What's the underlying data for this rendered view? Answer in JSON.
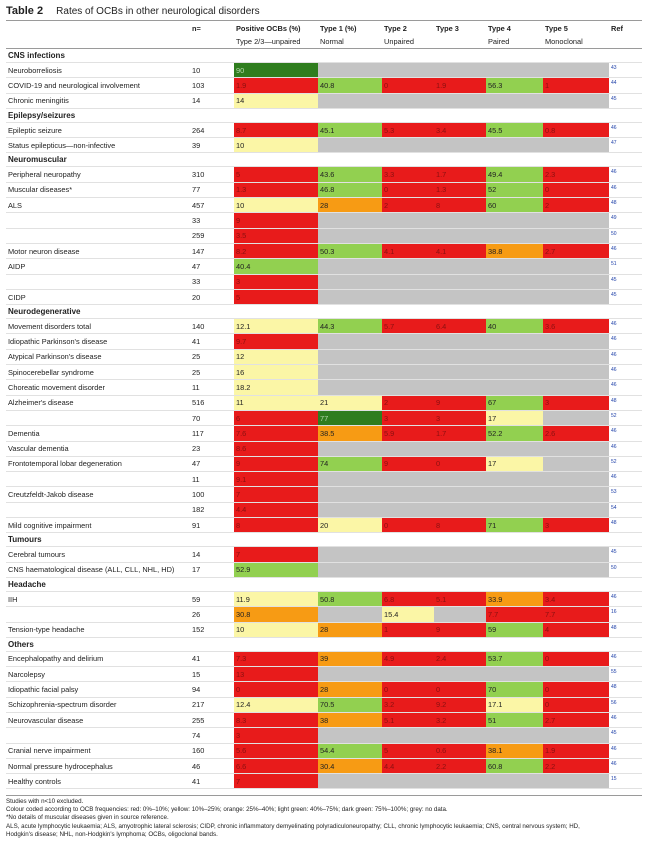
{
  "title": {
    "label": "Table 2",
    "text": "Rates of OCBs in other neurological disorders"
  },
  "colors": {
    "red": "#e81b1b",
    "yellow": "#fbf6a6",
    "orange": "#f79b14",
    "light_green": "#92d050",
    "dark_green": "#2f7d1e",
    "grey": "#c4c4c4"
  },
  "headers": {
    "row1": [
      "",
      "n=",
      "Positive OCBs (%)",
      "Type 1 (%)",
      "Type 2",
      "Type 3",
      "Type 4",
      "Type 5",
      "Ref"
    ],
    "row2": [
      "",
      "",
      "Type 2/3—unpaired",
      "Normal",
      "Unpaired",
      "",
      "Paired",
      "Monoclonal",
      ""
    ]
  },
  "rows": [
    {
      "kind": "section",
      "label": "CNS infections"
    },
    {
      "label": "Neuroborreliosis",
      "n": "10",
      "v": [
        "90",
        "",
        "",
        "",
        "",
        ""
      ],
      "c": [
        "dg",
        "gry",
        "gry",
        "gry",
        "gry",
        "gry"
      ],
      "ref": "43"
    },
    {
      "label": "COVID-19 and neurological involvement",
      "n": "103",
      "v": [
        "1.9",
        "40.8",
        "0",
        "1.9",
        "56.3",
        "1"
      ],
      "c": [
        "red",
        "lg",
        "red",
        "red",
        "lg",
        "red"
      ],
      "ref": "44"
    },
    {
      "label": "Chronic meningitis",
      "n": "14",
      "v": [
        "14",
        "",
        "",
        "",
        "",
        ""
      ],
      "c": [
        "yel",
        "gry",
        "gry",
        "gry",
        "gry",
        "gry"
      ],
      "ref": "45"
    },
    {
      "kind": "section",
      "label": "Epilepsy/seizures"
    },
    {
      "label": "Epileptic seizure",
      "n": "264",
      "v": [
        "8.7",
        "45.1",
        "5.3",
        "3.4",
        "45.5",
        "0.8"
      ],
      "c": [
        "red",
        "lg",
        "red",
        "red",
        "lg",
        "red"
      ],
      "ref": "46"
    },
    {
      "label": "Status epilepticus—non-infective",
      "n": "39",
      "v": [
        "10",
        "",
        "",
        "",
        "",
        ""
      ],
      "c": [
        "yel",
        "gry",
        "gry",
        "gry",
        "gry",
        "gry"
      ],
      "ref": "47"
    },
    {
      "kind": "section",
      "label": "Neuromuscular"
    },
    {
      "label": "Peripheral neuropathy",
      "n": "310",
      "v": [
        "5",
        "43.6",
        "3.3",
        "1.7",
        "49.4",
        "2.3"
      ],
      "c": [
        "red",
        "lg",
        "red",
        "red",
        "lg",
        "red"
      ],
      "ref": "46"
    },
    {
      "label": "Muscular diseases*",
      "n": "77",
      "v": [
        "1.3",
        "46.8",
        "0",
        "1.3",
        "52",
        "0"
      ],
      "c": [
        "red",
        "lg",
        "red",
        "red",
        "lg",
        "red"
      ],
      "ref": "46"
    },
    {
      "label": "ALS",
      "n": "457",
      "v": [
        "10",
        "28",
        "2",
        "8",
        "60",
        "2"
      ],
      "c": [
        "yel",
        "ora",
        "red",
        "red",
        "lg",
        "red"
      ],
      "ref": "48"
    },
    {
      "label": "",
      "n": "33",
      "v": [
        "9",
        "",
        "",
        "",
        "",
        ""
      ],
      "c": [
        "red",
        "gry",
        "gry",
        "gry",
        "gry",
        "gry"
      ],
      "ref": "49"
    },
    {
      "label": "",
      "n": "259",
      "v": [
        "3.5",
        "",
        "",
        "",
        "",
        ""
      ],
      "c": [
        "red",
        "gry",
        "gry",
        "gry",
        "gry",
        "gry"
      ],
      "ref": "50"
    },
    {
      "label": "Motor neuron disease",
      "n": "147",
      "v": [
        "8.2",
        "50.3",
        "4.1",
        "4.1",
        "38.8",
        "2.7"
      ],
      "c": [
        "red",
        "lg",
        "red",
        "red",
        "ora",
        "red"
      ],
      "ref": "46"
    },
    {
      "label": "AIDP",
      "n": "47",
      "v": [
        "40.4",
        "",
        "",
        "",
        "",
        ""
      ],
      "c": [
        "lg",
        "gry",
        "gry",
        "gry",
        "gry",
        "gry"
      ],
      "ref": "51"
    },
    {
      "label": "",
      "n": "33",
      "v": [
        "3",
        "",
        "",
        "",
        "",
        ""
      ],
      "c": [
        "red",
        "gry",
        "gry",
        "gry",
        "gry",
        "gry"
      ],
      "ref": "45"
    },
    {
      "label": "CIDP",
      "n": "20",
      "v": [
        "5",
        "",
        "",
        "",
        "",
        ""
      ],
      "c": [
        "red",
        "gry",
        "gry",
        "gry",
        "gry",
        "gry"
      ],
      "ref": "45"
    },
    {
      "kind": "section",
      "label": "Neurodegenerative"
    },
    {
      "label": "Movement disorders total",
      "n": "140",
      "v": [
        "12.1",
        "44.3",
        "5.7",
        "6.4",
        "40",
        "3.6"
      ],
      "c": [
        "yel",
        "lg",
        "red",
        "red",
        "lg",
        "red"
      ],
      "ref": "46"
    },
    {
      "label": "Idiopathic Parkinson's disease",
      "n": "41",
      "v": [
        "9.7",
        "",
        "",
        "",
        "",
        ""
      ],
      "c": [
        "red",
        "gry",
        "gry",
        "gry",
        "gry",
        "gry"
      ],
      "ref": "46"
    },
    {
      "label": "Atypical Parkinson's disease",
      "n": "25",
      "v": [
        "12",
        "",
        "",
        "",
        "",
        ""
      ],
      "c": [
        "yel",
        "gry",
        "gry",
        "gry",
        "gry",
        "gry"
      ],
      "ref": "46"
    },
    {
      "label": "Spinocerebellar syndrome",
      "n": "25",
      "v": [
        "16",
        "",
        "",
        "",
        "",
        ""
      ],
      "c": [
        "yel",
        "gry",
        "gry",
        "gry",
        "gry",
        "gry"
      ],
      "ref": "46"
    },
    {
      "label": "Choreatic movement disorder",
      "n": "11",
      "v": [
        "18.2",
        "",
        "",
        "",
        "",
        ""
      ],
      "c": [
        "yel",
        "gry",
        "gry",
        "gry",
        "gry",
        "gry"
      ],
      "ref": "46"
    },
    {
      "label": "Alzheimer's disease",
      "n": "516",
      "v": [
        "11",
        "21",
        "2",
        "9",
        "67",
        "3"
      ],
      "c": [
        "yel",
        "yel",
        "red",
        "red",
        "lg",
        "red"
      ],
      "ref": "48"
    },
    {
      "label": "",
      "n": "70",
      "v": [
        "6",
        "77",
        "3",
        "3",
        "17",
        ""
      ],
      "c": [
        "red",
        "dg",
        "red",
        "red",
        "yel",
        "gry"
      ],
      "ref": "52"
    },
    {
      "label": "Dementia",
      "n": "117",
      "v": [
        "7.6",
        "38.5",
        "5.9",
        "1.7",
        "52.2",
        "2.6"
      ],
      "c": [
        "red",
        "ora",
        "red",
        "red",
        "lg",
        "red"
      ],
      "ref": "46"
    },
    {
      "label": "Vascular dementia",
      "n": "23",
      "v": [
        "8.6",
        "",
        "",
        "",
        "",
        ""
      ],
      "c": [
        "red",
        "gry",
        "gry",
        "gry",
        "gry",
        "gry"
      ],
      "ref": "46"
    },
    {
      "label": "Frontotemporal lobar degeneration",
      "n": "47",
      "v": [
        "9",
        "74",
        "9",
        "0",
        "17",
        ""
      ],
      "c": [
        "red",
        "lg",
        "red",
        "red",
        "yel",
        "gry"
      ],
      "ref": "52"
    },
    {
      "label": "",
      "n": "11",
      "v": [
        "9.1",
        "",
        "",
        "",
        "",
        ""
      ],
      "c": [
        "red",
        "gry",
        "gry",
        "gry",
        "gry",
        "gry"
      ],
      "ref": "46"
    },
    {
      "label": "Creutzfeldt-Jakob disease",
      "n": "100",
      "v": [
        "7",
        "",
        "",
        "",
        "",
        ""
      ],
      "c": [
        "red",
        "gry",
        "gry",
        "gry",
        "gry",
        "gry"
      ],
      "ref": "53"
    },
    {
      "label": "",
      "n": "182",
      "v": [
        "4.4",
        "",
        "",
        "",
        "",
        ""
      ],
      "c": [
        "red",
        "gry",
        "gry",
        "gry",
        "gry",
        "gry"
      ],
      "ref": "54"
    },
    {
      "label": "Mild cognitive impairment",
      "n": "91",
      "v": [
        "8",
        "20",
        "0",
        "8",
        "71",
        "3"
      ],
      "c": [
        "red",
        "yel",
        "red",
        "red",
        "lg",
        "red"
      ],
      "ref": "48"
    },
    {
      "kind": "section",
      "label": "Tumours"
    },
    {
      "label": "Cerebral tumours",
      "n": "14",
      "v": [
        "7",
        "",
        "",
        "",
        "",
        ""
      ],
      "c": [
        "red",
        "gry",
        "gry",
        "gry",
        "gry",
        "gry"
      ],
      "ref": "45"
    },
    {
      "label": "CNS haematological disease (ALL, CLL, NHL, HD)",
      "n": "17",
      "v": [
        "52.9",
        "",
        "",
        "",
        "",
        ""
      ],
      "c": [
        "lg",
        "gry",
        "gry",
        "gry",
        "gry",
        "gry"
      ],
      "ref": "50"
    },
    {
      "kind": "section",
      "label": "Headache"
    },
    {
      "label": "IIH",
      "n": "59",
      "v": [
        "11.9",
        "50.8",
        "6.8",
        "5.1",
        "33.9",
        "3.4"
      ],
      "c": [
        "yel",
        "lg",
        "red",
        "red",
        "ora",
        "red"
      ],
      "ref": "46"
    },
    {
      "label": "",
      "n": "26",
      "v": [
        "30.8",
        "",
        "15.4",
        "",
        "7.7",
        "7.7"
      ],
      "c": [
        "ora",
        "gry",
        "yel",
        "gry",
        "red",
        "red"
      ],
      "ref": "16"
    },
    {
      "label": "Tension-type headache",
      "n": "152",
      "v": [
        "10",
        "28",
        "1",
        "9",
        "59",
        "4"
      ],
      "c": [
        "yel",
        "ora",
        "red",
        "red",
        "lg",
        "red"
      ],
      "ref": "48"
    },
    {
      "kind": "section",
      "label": "Others"
    },
    {
      "label": "Encephalopathy and delirium",
      "n": "41",
      "v": [
        "7.3",
        "39",
        "4.9",
        "2.4",
        "53.7",
        "0"
      ],
      "c": [
        "red",
        "ora",
        "red",
        "red",
        "lg",
        "red"
      ],
      "ref": "46"
    },
    {
      "label": "Narcolepsy",
      "n": "15",
      "v": [
        "13",
        "",
        "",
        "",
        "",
        ""
      ],
      "c": [
        "red",
        "gry",
        "gry",
        "gry",
        "gry",
        "gry"
      ],
      "ref": "55"
    },
    {
      "label": "Idiopathic facial palsy",
      "n": "94",
      "v": [
        "0",
        "28",
        "0",
        "0",
        "70",
        "0"
      ],
      "c": [
        "red",
        "ora",
        "red",
        "red",
        "lg",
        "red"
      ],
      "ref": "48"
    },
    {
      "label": "Schizophrenia-spectrum disorder",
      "n": "217",
      "v": [
        "12.4",
        "70.5",
        "3.2",
        "9.2",
        "17.1",
        "0"
      ],
      "c": [
        "yel",
        "lg",
        "red",
        "red",
        "yel",
        "red"
      ],
      "ref": "56"
    },
    {
      "label": "Neurovascular disease",
      "n": "255",
      "v": [
        "8.3",
        "38",
        "5.1",
        "3.2",
        "51",
        "2.7"
      ],
      "c": [
        "red",
        "ora",
        "red",
        "red",
        "lg",
        "red"
      ],
      "ref": "46"
    },
    {
      "label": "",
      "n": "74",
      "v": [
        "3",
        "",
        "",
        "",
        "",
        ""
      ],
      "c": [
        "red",
        "gry",
        "gry",
        "gry",
        "gry",
        "gry"
      ],
      "ref": "45"
    },
    {
      "label": "Cranial nerve impairment",
      "n": "160",
      "v": [
        "5.6",
        "54.4",
        "5",
        "0.6",
        "38.1",
        "1.9"
      ],
      "c": [
        "red",
        "lg",
        "red",
        "red",
        "ora",
        "red"
      ],
      "ref": "46"
    },
    {
      "label": "Normal pressure hydrocephalus",
      "n": "46",
      "v": [
        "6.6",
        "30.4",
        "4.4",
        "2.2",
        "60.8",
        "2.2"
      ],
      "c": [
        "red",
        "ora",
        "red",
        "red",
        "lg",
        "red"
      ],
      "ref": "46"
    },
    {
      "label": "Healthy controls",
      "n": "41",
      "v": [
        "7",
        "",
        "",
        "",
        "",
        ""
      ],
      "c": [
        "red",
        "gry",
        "gry",
        "gry",
        "gry",
        "gry"
      ],
      "ref": "15"
    }
  ],
  "notes": [
    "Studies with n<10 excluded.",
    "Colour coded according to OCB frequencies: red: 0%–10%; yellow: 10%–25%; orange: 25%–40%; light green: 40%–75%; dark green: 75%–100%; grey: no data.",
    "*No details of muscular diseases given in source reference.",
    "ALS, acute lymphocytic leukaemia; ALS, amyotrophic lateral sclerosis; CIDP, chronic inflammatory demyelinating polyradiculoneuropathy; CLL, chronic lymphocytic leukaemia; CNS, central nervous system; HD,",
    "Hodgkin's disease; NHL, non-Hodgkin's lymphoma; OCBs, oligoclonal bands."
  ]
}
